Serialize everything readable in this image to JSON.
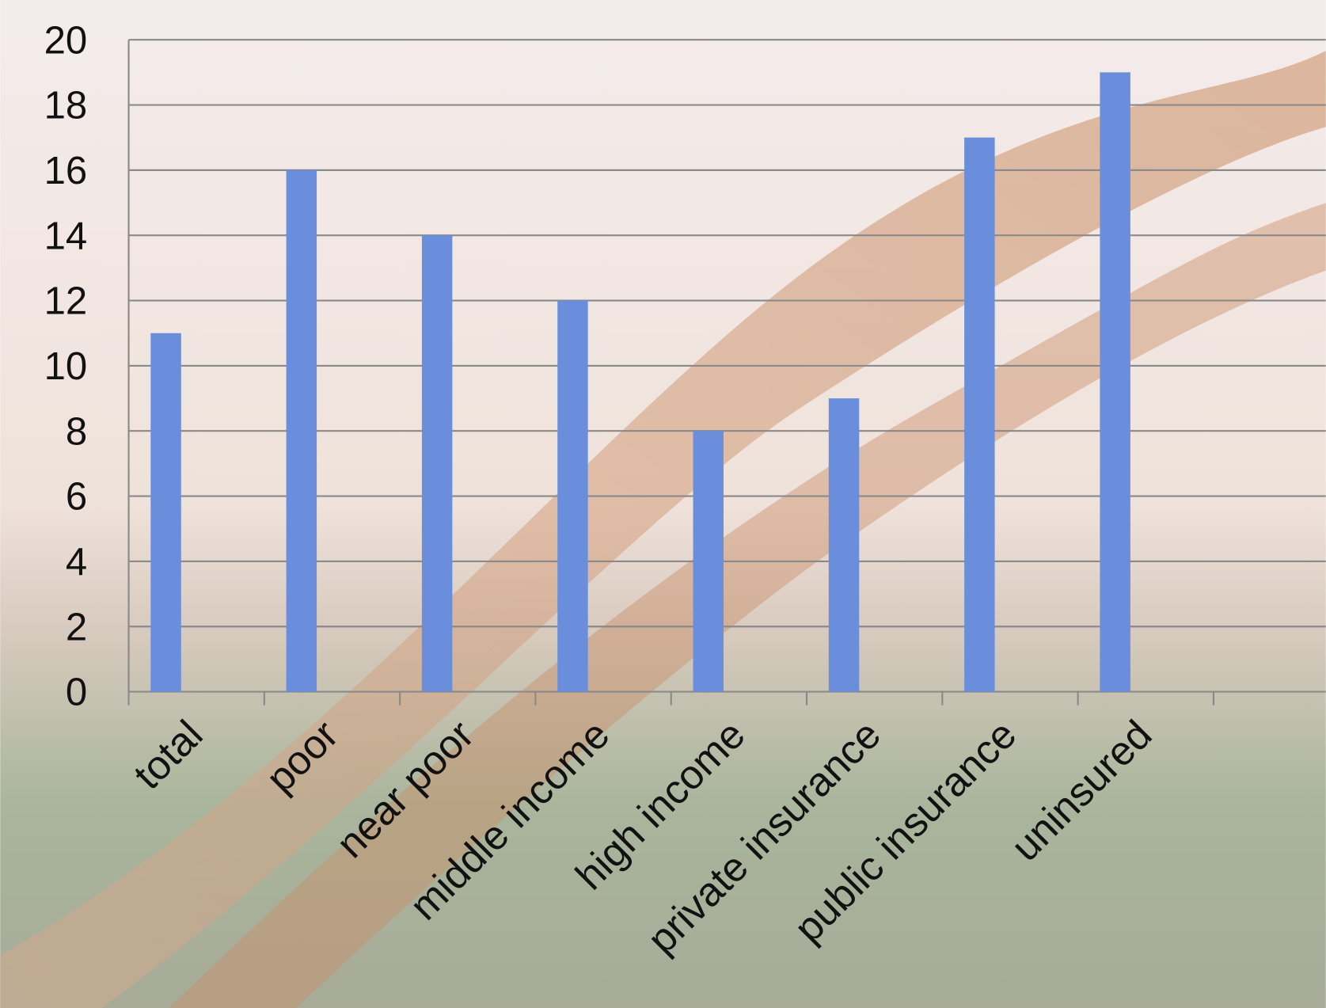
{
  "chart_data": {
    "type": "bar",
    "categories": [
      "total",
      "poor",
      "near poor",
      "middle income",
      "high income",
      "private insurance",
      "public insurance",
      "uninsured",
      null
    ],
    "values": [
      11,
      16,
      14,
      12,
      8,
      9,
      17,
      19,
      null
    ],
    "color": "#6a8edb",
    "ylim": [
      0,
      20
    ],
    "yticks": [
      0,
      2,
      4,
      6,
      8,
      10,
      12,
      14,
      16,
      18,
      20
    ],
    "grid": true
  }
}
